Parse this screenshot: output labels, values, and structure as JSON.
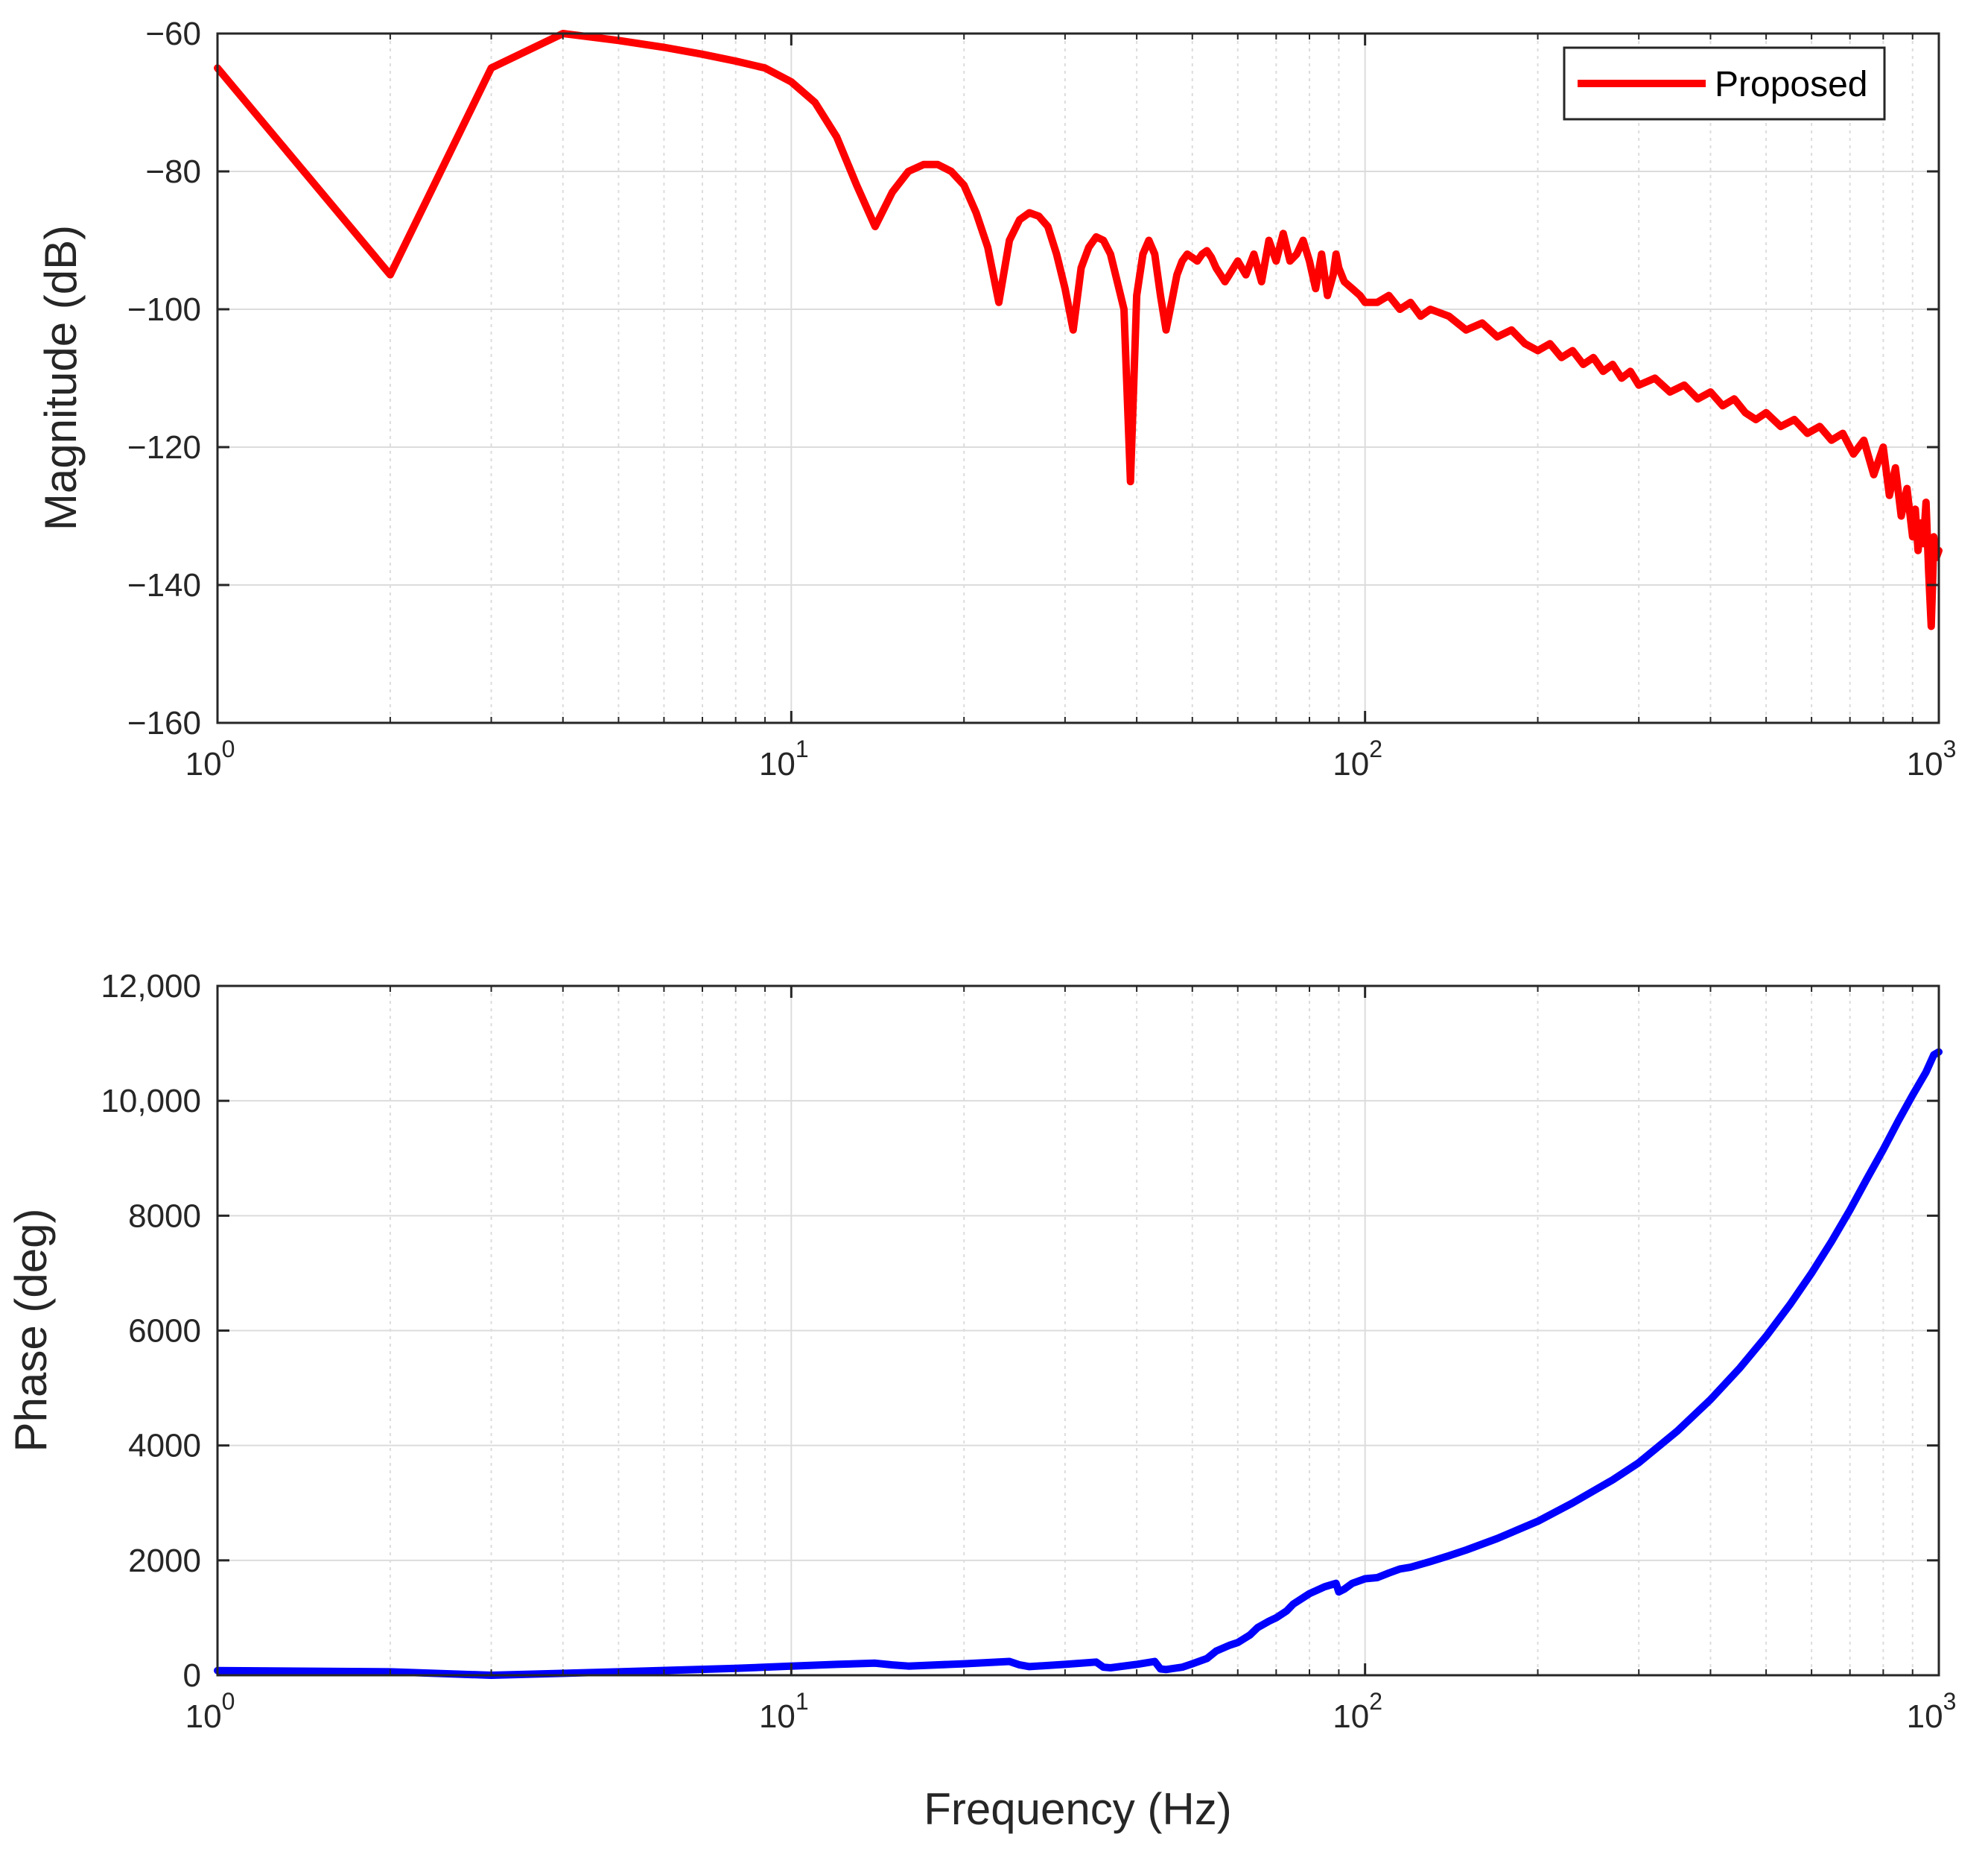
{
  "chart_data": [
    {
      "type": "line",
      "name": "magnitude",
      "xscale": "log",
      "xlim": [
        1,
        1000
      ],
      "ylim": [
        -160,
        -60
      ],
      "xticks": [
        1,
        10,
        100,
        1000
      ],
      "xtick_bases": [
        "10",
        "10",
        "10",
        "10"
      ],
      "xtick_exps": [
        "0",
        "1",
        "2",
        "3"
      ],
      "yticks": [
        -160,
        -140,
        -120,
        -100,
        -80,
        -60
      ],
      "ytick_labels": [
        "−160",
        "−140",
        "−120",
        "−100",
        "−80",
        "−60"
      ],
      "xlabel": "",
      "ylabel": "Magnitude (dB)",
      "grid": true,
      "legend": {
        "position": "top-right",
        "entries": [
          "Proposed"
        ]
      },
      "series": [
        {
          "name": "Proposed",
          "color": "#ff0000",
          "x": [
            1,
            2,
            3,
            4,
            5,
            6,
            7,
            8,
            9,
            10,
            11,
            12,
            13,
            14,
            15,
            16,
            17,
            18,
            19,
            20,
            21,
            22,
            23,
            24,
            25,
            26,
            27,
            28,
            29,
            30,
            31,
            32,
            33,
            34,
            35,
            36,
            37,
            38,
            39,
            40,
            41,
            42,
            43,
            44,
            45,
            46,
            47,
            48,
            49,
            50,
            51,
            52,
            53,
            54,
            55,
            56,
            57,
            58,
            59,
            60,
            62,
            64,
            66,
            68,
            70,
            72,
            74,
            76,
            78,
            80,
            82,
            84,
            86,
            88,
            89,
            90,
            92,
            95,
            98,
            100,
            105,
            110,
            115,
            120,
            125,
            130,
            140,
            150,
            160,
            170,
            180,
            190,
            200,
            210,
            220,
            230,
            240,
            250,
            260,
            270,
            280,
            290,
            300,
            320,
            340,
            360,
            380,
            400,
            420,
            440,
            460,
            480,
            500,
            530,
            560,
            590,
            620,
            650,
            680,
            710,
            740,
            770,
            800,
            820,
            840,
            860,
            880,
            900,
            910,
            920,
            930,
            940,
            950,
            960,
            970,
            975,
            980,
            990,
            1000
          ],
          "y": [
            -65,
            -95,
            -65,
            -60,
            -61,
            -62,
            -63,
            -64,
            -65,
            -67,
            -70,
            -75,
            -82,
            -88,
            -83,
            -80,
            -79,
            -79,
            -80,
            -82,
            -86,
            -91,
            -99,
            -90,
            -87,
            -86,
            -86.5,
            -88,
            -92,
            -97,
            -103,
            -94,
            -91,
            -89.5,
            -90,
            -92,
            -96,
            -100,
            -125,
            -98,
            -92,
            -90,
            -92,
            -98,
            -103,
            -99,
            -95,
            -93,
            -92,
            -92.5,
            -93,
            -92,
            -91.5,
            -92.5,
            -94,
            -95,
            -96,
            -95,
            -94,
            -93,
            -95,
            -92,
            -96,
            -90,
            -93,
            -89,
            -93,
            -92,
            -90,
            -93,
            -97,
            -92,
            -98,
            -95,
            -92,
            -94,
            -96,
            -97,
            -98,
            -99,
            -99,
            -98,
            -100,
            -99,
            -101,
            -100,
            -101,
            -103,
            -102,
            -104,
            -103,
            -105,
            -106,
            -105,
            -107,
            -106,
            -108,
            -107,
            -109,
            -108,
            -110,
            -109,
            -111,
            -110,
            -112,
            -111,
            -113,
            -112,
            -114,
            -113,
            -115,
            -116,
            -115,
            -117,
            -116,
            -118,
            -117,
            -119,
            -118,
            -121,
            -119,
            -124,
            -120,
            -127,
            -123,
            -130,
            -126,
            -133,
            -129,
            -135,
            -131,
            -134,
            -128,
            -138,
            -146,
            -140,
            -133,
            -136,
            -135
          ]
        }
      ]
    },
    {
      "type": "line",
      "name": "phase",
      "xscale": "log",
      "xlim": [
        1,
        1000
      ],
      "ylim": [
        0,
        12000
      ],
      "xticks": [
        1,
        10,
        100,
        1000
      ],
      "xtick_bases": [
        "10",
        "10",
        "10",
        "10"
      ],
      "xtick_exps": [
        "0",
        "1",
        "2",
        "3"
      ],
      "yticks": [
        0,
        2000,
        4000,
        6000,
        8000,
        10000,
        12000
      ],
      "ytick_labels": [
        "0",
        "2000",
        "4000",
        "6000",
        "8000",
        "10,000",
        "12,000"
      ],
      "xlabel": "Frequency (Hz)",
      "ylabel": "Phase (deg)",
      "grid": true,
      "series": [
        {
          "name": "Phase",
          "color": "#0000ff",
          "x": [
            1,
            2,
            3,
            5,
            8,
            10,
            12,
            14,
            15,
            16,
            20,
            24,
            25,
            26,
            30,
            34,
            35,
            36,
            40,
            43,
            44,
            45,
            48,
            50,
            53,
            55,
            58,
            60,
            63,
            65,
            68,
            70,
            73,
            75,
            80,
            85,
            89,
            90,
            92,
            95,
            100,
            105,
            110,
            115,
            120,
            130,
            140,
            150,
            170,
            200,
            230,
            270,
            300,
            350,
            400,
            450,
            500,
            550,
            600,
            650,
            700,
            750,
            800,
            850,
            900,
            950,
            980,
            1000
          ],
          "y": [
            80,
            60,
            0,
            60,
            120,
            160,
            190,
            210,
            180,
            160,
            200,
            240,
            180,
            150,
            190,
            230,
            140,
            130,
            190,
            240,
            110,
            100,
            140,
            200,
            290,
            420,
            520,
            570,
            700,
            830,
            940,
            1000,
            1120,
            1240,
            1420,
            1540,
            1600,
            1450,
            1500,
            1600,
            1680,
            1700,
            1780,
            1850,
            1880,
            1980,
            2080,
            2180,
            2380,
            2680,
            3000,
            3400,
            3700,
            4250,
            4800,
            5350,
            5900,
            6450,
            7000,
            7550,
            8100,
            8650,
            9150,
            9650,
            10100,
            10500,
            10800,
            10850
          ]
        }
      ]
    }
  ]
}
